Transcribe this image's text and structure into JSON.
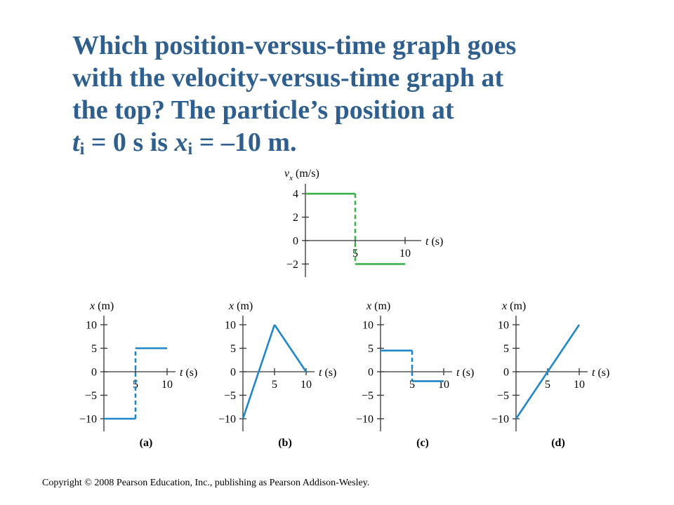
{
  "question": {
    "line1": "Which position-versus-time graph goes",
    "line2": "with the velocity-versus-time graph at",
    "line3": "the top? The particle’s position at",
    "t_sym": "t",
    "t_sub": "i",
    "eq1": " = 0 s is ",
    "x_sym": "x",
    "x_sub": "i",
    "eq2": " = –10 m."
  },
  "copyright": "Copyright © 2008 Pearson Education, Inc., publishing as Pearson Addison-Wesley.",
  "colors": {
    "title": "#2e5f8f",
    "velocity": "#3cb04a",
    "position": "#1f87c9"
  },
  "chart_data": [
    {
      "id": "velocity",
      "type": "line",
      "ylabel_sym": "v",
      "ylabel_sub": "x",
      "ylabel_unit": " (m/s)",
      "xlabel": "t (s)",
      "xlim": [
        0,
        10
      ],
      "ylim": [
        -2,
        4
      ],
      "xticks": [
        {
          "v": 5,
          "label": "5"
        },
        {
          "v": 10,
          "label": "10"
        }
      ],
      "yticks": [
        {
          "v": 4,
          "label": "4"
        },
        {
          "v": 2,
          "label": "2"
        },
        {
          "v": 0,
          "label": "0"
        },
        {
          "v": -2,
          "label": "−2"
        }
      ],
      "segments": [
        {
          "x1": 0,
          "y1": 4,
          "x2": 5,
          "y2": 4,
          "dashed": false
        },
        {
          "x1": 5,
          "y1": 4,
          "x2": 5,
          "y2": -2,
          "dashed": true
        },
        {
          "x1": 5,
          "y1": -2,
          "x2": 10,
          "y2": -2,
          "dashed": false
        }
      ]
    },
    {
      "id": "a",
      "type": "line",
      "caption": "(a)",
      "ylabel": "x (m)",
      "xlabel": "t (s)",
      "xlim": [
        0,
        10
      ],
      "ylim": [
        -10,
        10
      ],
      "xticks": [
        {
          "v": 5,
          "label": "5"
        },
        {
          "v": 10,
          "label": "10"
        }
      ],
      "yticks": [
        {
          "v": 10,
          "label": "10"
        },
        {
          "v": 5,
          "label": "5"
        },
        {
          "v": 0,
          "label": "0"
        },
        {
          "v": -5,
          "label": "−5"
        },
        {
          "v": -10,
          "label": "−10"
        }
      ],
      "segments": [
        {
          "x1": 0,
          "y1": -10,
          "x2": 5,
          "y2": -10,
          "dashed": false
        },
        {
          "x1": 5,
          "y1": -10,
          "x2": 5,
          "y2": 5,
          "dashed": true
        },
        {
          "x1": 5,
          "y1": 5,
          "x2": 10,
          "y2": 5,
          "dashed": false
        }
      ]
    },
    {
      "id": "b",
      "type": "line",
      "caption": "(b)",
      "ylabel": "x (m)",
      "xlabel": "t (s)",
      "xlim": [
        0,
        10
      ],
      "ylim": [
        -10,
        10
      ],
      "xticks": [
        {
          "v": 5,
          "label": "5"
        },
        {
          "v": 10,
          "label": "10"
        }
      ],
      "yticks": [
        {
          "v": 10,
          "label": "10"
        },
        {
          "v": 5,
          "label": "5"
        },
        {
          "v": 0,
          "label": "0"
        },
        {
          "v": -5,
          "label": "−5"
        },
        {
          "v": -10,
          "label": "−10"
        }
      ],
      "segments": [
        {
          "x1": 0,
          "y1": -10,
          "x2": 5,
          "y2": 10,
          "dashed": false
        },
        {
          "x1": 5,
          "y1": 10,
          "x2": 10,
          "y2": 0,
          "dashed": false
        }
      ]
    },
    {
      "id": "c",
      "type": "line",
      "caption": "(c)",
      "ylabel": "x (m)",
      "xlabel": "t (s)",
      "xlim": [
        0,
        10
      ],
      "ylim": [
        -10,
        10
      ],
      "xticks": [
        {
          "v": 5,
          "label": "5"
        },
        {
          "v": 10,
          "label": "10"
        }
      ],
      "yticks": [
        {
          "v": 10,
          "label": "10"
        },
        {
          "v": 5,
          "label": "5"
        },
        {
          "v": 0,
          "label": "0"
        },
        {
          "v": -5,
          "label": "−5"
        },
        {
          "v": -10,
          "label": "−10"
        }
      ],
      "segments": [
        {
          "x1": 0,
          "y1": 4.5,
          "x2": 5,
          "y2": 4.5,
          "dashed": false
        },
        {
          "x1": 5,
          "y1": 4.5,
          "x2": 5,
          "y2": -2,
          "dashed": true
        },
        {
          "x1": 5,
          "y1": -2,
          "x2": 10,
          "y2": -2,
          "dashed": false
        }
      ]
    },
    {
      "id": "d",
      "type": "line",
      "caption": "(d)",
      "ylabel": "x (m)",
      "xlabel": "t (s)",
      "xlim": [
        0,
        10
      ],
      "ylim": [
        -10,
        10
      ],
      "xticks": [
        {
          "v": 5,
          "label": "5"
        },
        {
          "v": 10,
          "label": "10"
        }
      ],
      "yticks": [
        {
          "v": 10,
          "label": "10"
        },
        {
          "v": 5,
          "label": "5"
        },
        {
          "v": 0,
          "label": "0"
        },
        {
          "v": -5,
          "label": "−5"
        },
        {
          "v": -10,
          "label": "−10"
        }
      ],
      "segments": [
        {
          "x1": 0,
          "y1": -10,
          "x2": 10,
          "y2": 10,
          "dashed": false
        }
      ]
    }
  ]
}
